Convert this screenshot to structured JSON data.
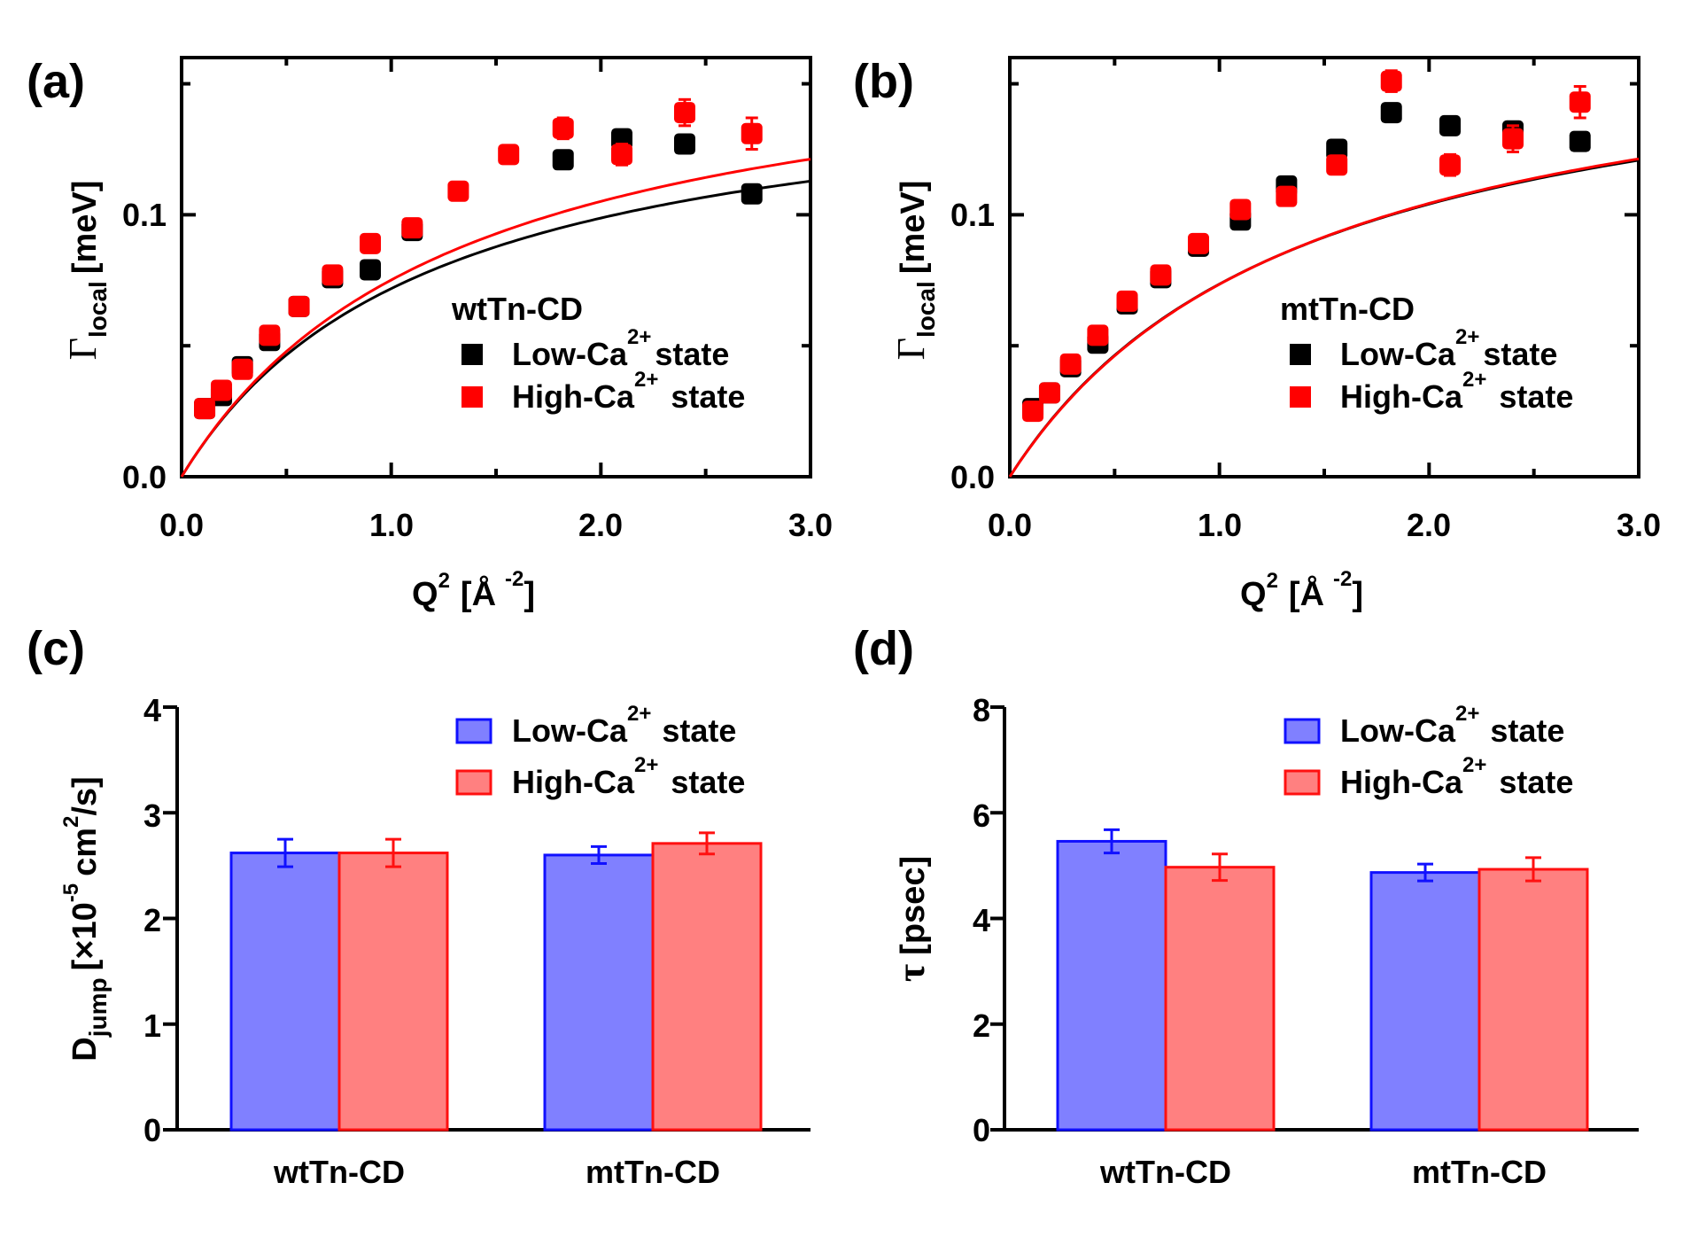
{
  "colors": {
    "black": "#000000",
    "red": "#ff0000",
    "blue_face": "#8080ff",
    "blue_edge": "#1010ff",
    "red_face": "#ff8080",
    "red_edge": "#ff1010"
  },
  "chart_data": [
    {
      "id": "a",
      "type": "scatter",
      "panel_label": "(a)",
      "xlabel": "Q",
      "xlabel_sup": "2",
      "xlabel_unit": "[Å",
      "xlabel_unit_sup": "-2",
      "xlabel_close": "]",
      "ylabel_symbol": "Γ",
      "ylabel_sub": "local",
      "ylabel_unit": "[meV]",
      "xlim": [
        0,
        3.0
      ],
      "ylim": [
        0,
        0.16
      ],
      "xticks": [
        0.0,
        1.0,
        2.0,
        3.0
      ],
      "xtick_labels": [
        "0.0",
        "1.0",
        "2.0",
        "3.0"
      ],
      "yticks": [
        0.0,
        0.1
      ],
      "ytick_labels": [
        "0.0",
        "0.1"
      ],
      "legend_title": "wtTn-CD",
      "series": [
        {
          "name": "Low-Ca",
          "name_sup": "2+",
          "name_suffix": "state",
          "color": "#000000",
          "x": [
            0.11,
            0.19,
            0.29,
            0.42,
            0.56,
            0.72,
            0.9,
            1.1,
            1.82,
            2.1,
            2.4,
            2.72
          ],
          "y": [
            0.026,
            0.031,
            0.042,
            0.052,
            0.065,
            0.076,
            0.079,
            0.094,
            0.121,
            0.129,
            0.127,
            0.108
          ],
          "err": [
            0.002,
            0.002,
            0.002,
            0.002,
            0.002,
            0.002,
            0.003,
            0.002,
            0.003,
            0.003,
            0.003,
            0.003
          ],
          "fit": {
            "A": 0.158,
            "Q2_0": 1.2
          }
        },
        {
          "name": "High-Ca",
          "name_sup": "2+",
          "name_suffix": "state",
          "color": "#ff0000",
          "x": [
            0.11,
            0.19,
            0.29,
            0.42,
            0.56,
            0.72,
            0.9,
            1.1,
            1.32,
            1.56,
            1.82,
            2.1,
            2.4,
            2.72
          ],
          "y": [
            0.026,
            0.033,
            0.041,
            0.054,
            0.065,
            0.077,
            0.089,
            0.095,
            0.109,
            0.123,
            0.133,
            0.123,
            0.139,
            0.131
          ],
          "err": [
            0.002,
            0.002,
            0.002,
            0.002,
            0.002,
            0.002,
            0.002,
            0.002,
            0.003,
            0.003,
            0.004,
            0.004,
            0.005,
            0.006
          ],
          "fit": {
            "A": 0.175,
            "Q2_0": 1.33
          }
        }
      ]
    },
    {
      "id": "b",
      "type": "scatter",
      "panel_label": "(b)",
      "xlabel": "Q",
      "xlabel_sup": "2",
      "xlabel_unit": "[Å",
      "xlabel_unit_sup": "-2",
      "xlabel_close": "]",
      "ylabel_symbol": "Γ",
      "ylabel_sub": "local",
      "ylabel_unit": "[meV]",
      "xlim": [
        0,
        3.0
      ],
      "ylim": [
        0,
        0.16
      ],
      "xticks": [
        0.0,
        1.0,
        2.0,
        3.0
      ],
      "xtick_labels": [
        "0.0",
        "1.0",
        "2.0",
        "3.0"
      ],
      "yticks": [
        0.0,
        0.1
      ],
      "ytick_labels": [
        "0.0",
        "0.1"
      ],
      "legend_title": "mtTn-CD",
      "series": [
        {
          "name": "Low-Ca",
          "name_sup": "2+",
          "name_suffix": "state",
          "color": "#000000",
          "x": [
            0.11,
            0.19,
            0.29,
            0.42,
            0.56,
            0.72,
            0.9,
            1.1,
            1.32,
            1.56,
            1.82,
            2.1,
            2.4,
            2.72
          ],
          "y": [
            0.026,
            0.032,
            0.042,
            0.051,
            0.066,
            0.076,
            0.088,
            0.098,
            0.111,
            0.125,
            0.139,
            0.134,
            0.132,
            0.128
          ],
          "err": [
            0.002,
            0.002,
            0.002,
            0.002,
            0.002,
            0.002,
            0.002,
            0.002,
            0.002,
            0.003,
            0.003,
            0.003,
            0.003,
            0.003
          ],
          "fit": {
            "A": 0.178,
            "Q2_0": 1.42
          }
        },
        {
          "name": "High-Ca",
          "name_sup": "2+",
          "name_suffix": "state",
          "color": "#ff0000",
          "x": [
            0.11,
            0.19,
            0.29,
            0.42,
            0.56,
            0.72,
            0.9,
            1.1,
            1.32,
            1.56,
            1.82,
            2.1,
            2.4,
            2.72
          ],
          "y": [
            0.025,
            0.032,
            0.043,
            0.054,
            0.067,
            0.077,
            0.089,
            0.102,
            0.107,
            0.119,
            0.151,
            0.119,
            0.129,
            0.143
          ],
          "err": [
            0.002,
            0.002,
            0.002,
            0.002,
            0.002,
            0.002,
            0.002,
            0.002,
            0.002,
            0.003,
            0.004,
            0.004,
            0.005,
            0.006
          ],
          "fit": {
            "A": 0.18,
            "Q2_0": 1.45
          }
        }
      ]
    },
    {
      "id": "c",
      "type": "bar",
      "panel_label": "(c)",
      "categories": [
        "wtTn-CD",
        "mtTn-CD"
      ],
      "ylabel_main": "D",
      "ylabel_sub": "jump",
      "ylabel_unit": "[×10",
      "ylabel_exp": "-5",
      "ylabel_unit2": "cm",
      "ylabel_exp2": "2",
      "ylabel_unit3": "/s]",
      "ylim": [
        0,
        4
      ],
      "yticks": [
        0,
        1,
        2,
        3,
        4
      ],
      "ytick_labels": [
        "0",
        "1",
        "2",
        "3",
        "4"
      ],
      "series": [
        {
          "name": "Low-Ca",
          "name_sup": "2+",
          "name_suffix": "state",
          "values": [
            2.62,
            2.6
          ],
          "err": [
            0.13,
            0.08
          ]
        },
        {
          "name": "High-Ca",
          "name_sup": "2+",
          "name_suffix": "state",
          "values": [
            2.62,
            2.71
          ],
          "err": [
            0.13,
            0.1
          ]
        }
      ]
    },
    {
      "id": "d",
      "type": "bar",
      "panel_label": "(d)",
      "categories": [
        "wtTn-CD",
        "mtTn-CD"
      ],
      "ylabel_symbol": "τ",
      "ylabel_unit": "[psec]",
      "ylim": [
        0,
        8
      ],
      "yticks": [
        0,
        2,
        4,
        6,
        8
      ],
      "ytick_labels": [
        "0",
        "2",
        "4",
        "6",
        "8"
      ],
      "series": [
        {
          "name": "Low-Ca",
          "name_sup": "2+",
          "name_suffix": "state",
          "values": [
            5.46,
            4.87
          ],
          "err": [
            0.22,
            0.16
          ]
        },
        {
          "name": "High-Ca",
          "name_sup": "2+",
          "name_suffix": "state",
          "values": [
            4.97,
            4.93
          ],
          "err": [
            0.25,
            0.22
          ]
        }
      ]
    }
  ]
}
